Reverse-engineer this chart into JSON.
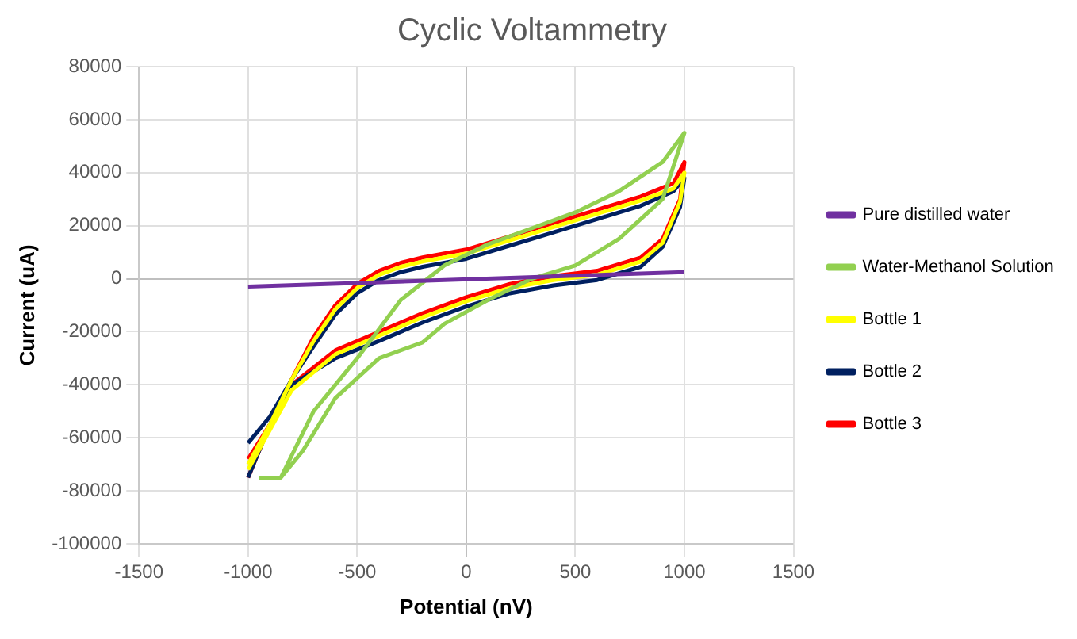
{
  "chart_data": {
    "type": "line",
    "title": "Cyclic Voltammetry",
    "xlabel": "Potential (nV)",
    "ylabel": "Current (uA)",
    "xlim": [
      -1500,
      1500
    ],
    "xticks": [
      -1500,
      -1000,
      -500,
      0,
      500,
      1000,
      1500
    ],
    "ylim": [
      -100000,
      80000
    ],
    "yticks": [
      -100000,
      -80000,
      -60000,
      -40000,
      -20000,
      0,
      20000,
      40000,
      60000,
      80000
    ],
    "grid": true,
    "legend": "right",
    "marker": "none",
    "line_style": "solid",
    "series": [
      {
        "name": "Pure distilled water",
        "color": "#7030a0",
        "x": [
          -1000,
          1000
        ],
        "values": [
          -3000,
          2500
        ]
      },
      {
        "name": "Water-Methanol Solution",
        "color": "#92d050",
        "x": [
          -850,
          -700,
          -500,
          -300,
          -100,
          100,
          300,
          500,
          700,
          900,
          1000,
          900,
          700,
          500,
          300,
          100,
          -100,
          -200,
          -400,
          -600,
          -750,
          -850,
          -950
        ],
        "values": [
          -75000,
          -50000,
          -30000,
          -8000,
          5000,
          13000,
          19000,
          25000,
          33000,
          44000,
          55000,
          30000,
          15000,
          5000,
          0,
          -8000,
          -17000,
          -24000,
          -30000,
          -45000,
          -65000,
          -75000,
          -75000
        ]
      },
      {
        "name": "Bottle 1",
        "color": "#ffff00",
        "x": [
          -1000,
          -900,
          -800,
          -700,
          -600,
          -500,
          -400,
          -300,
          -200,
          0,
          200,
          400,
          600,
          800,
          950,
          1000,
          980,
          900,
          800,
          600,
          400,
          200,
          0,
          -200,
          -400,
          -600,
          -800,
          -900,
          -1000
        ],
        "values": [
          -70000,
          -55000,
          -38000,
          -23500,
          -11500,
          -3500,
          1500,
          4500,
          6500,
          9500,
          14500,
          19500,
          24500,
          29500,
          34000,
          40000,
          29000,
          13500,
          6500,
          1500,
          -500,
          -3500,
          -8500,
          -14500,
          -21500,
          -28500,
          -42000,
          -57000,
          -72000
        ]
      },
      {
        "name": "Bottle 2",
        "color": "#002060",
        "x": [
          -1000,
          -900,
          -800,
          -700,
          -600,
          -500,
          -400,
          -300,
          -200,
          0,
          200,
          400,
          600,
          800,
          950,
          1000,
          980,
          900,
          800,
          600,
          400,
          200,
          0,
          -200,
          -400,
          -600,
          -800,
          -900,
          -1000
        ],
        "values": [
          -62000,
          -52000,
          -38000,
          -25500,
          -13500,
          -5500,
          -500,
          2500,
          4500,
          7500,
          12500,
          17500,
          22500,
          27500,
          33000,
          38000,
          27000,
          12000,
          4500,
          -500,
          -2500,
          -5500,
          -10500,
          -16500,
          -23500,
          -30000,
          -40000,
          -55000,
          -75000
        ]
      },
      {
        "name": "Bottle 3",
        "color": "#ff0000",
        "x": [
          -1000,
          -900,
          -800,
          -700,
          -600,
          -500,
          -400,
          -300,
          -200,
          0,
          200,
          400,
          600,
          800,
          950,
          1000,
          980,
          900,
          800,
          600,
          400,
          200,
          0,
          -200,
          -400,
          -600,
          -800,
          -900,
          -1000
        ],
        "values": [
          -75000,
          -55000,
          -38000,
          -22000,
          -10000,
          -2000,
          3000,
          6000,
          8000,
          11000,
          16000,
          21000,
          26000,
          31000,
          36000,
          44000,
          30000,
          15000,
          8000,
          3000,
          1000,
          -2000,
          -7000,
          -13000,
          -20000,
          -27000,
          -40000,
          -55000,
          -68000
        ]
      }
    ]
  }
}
